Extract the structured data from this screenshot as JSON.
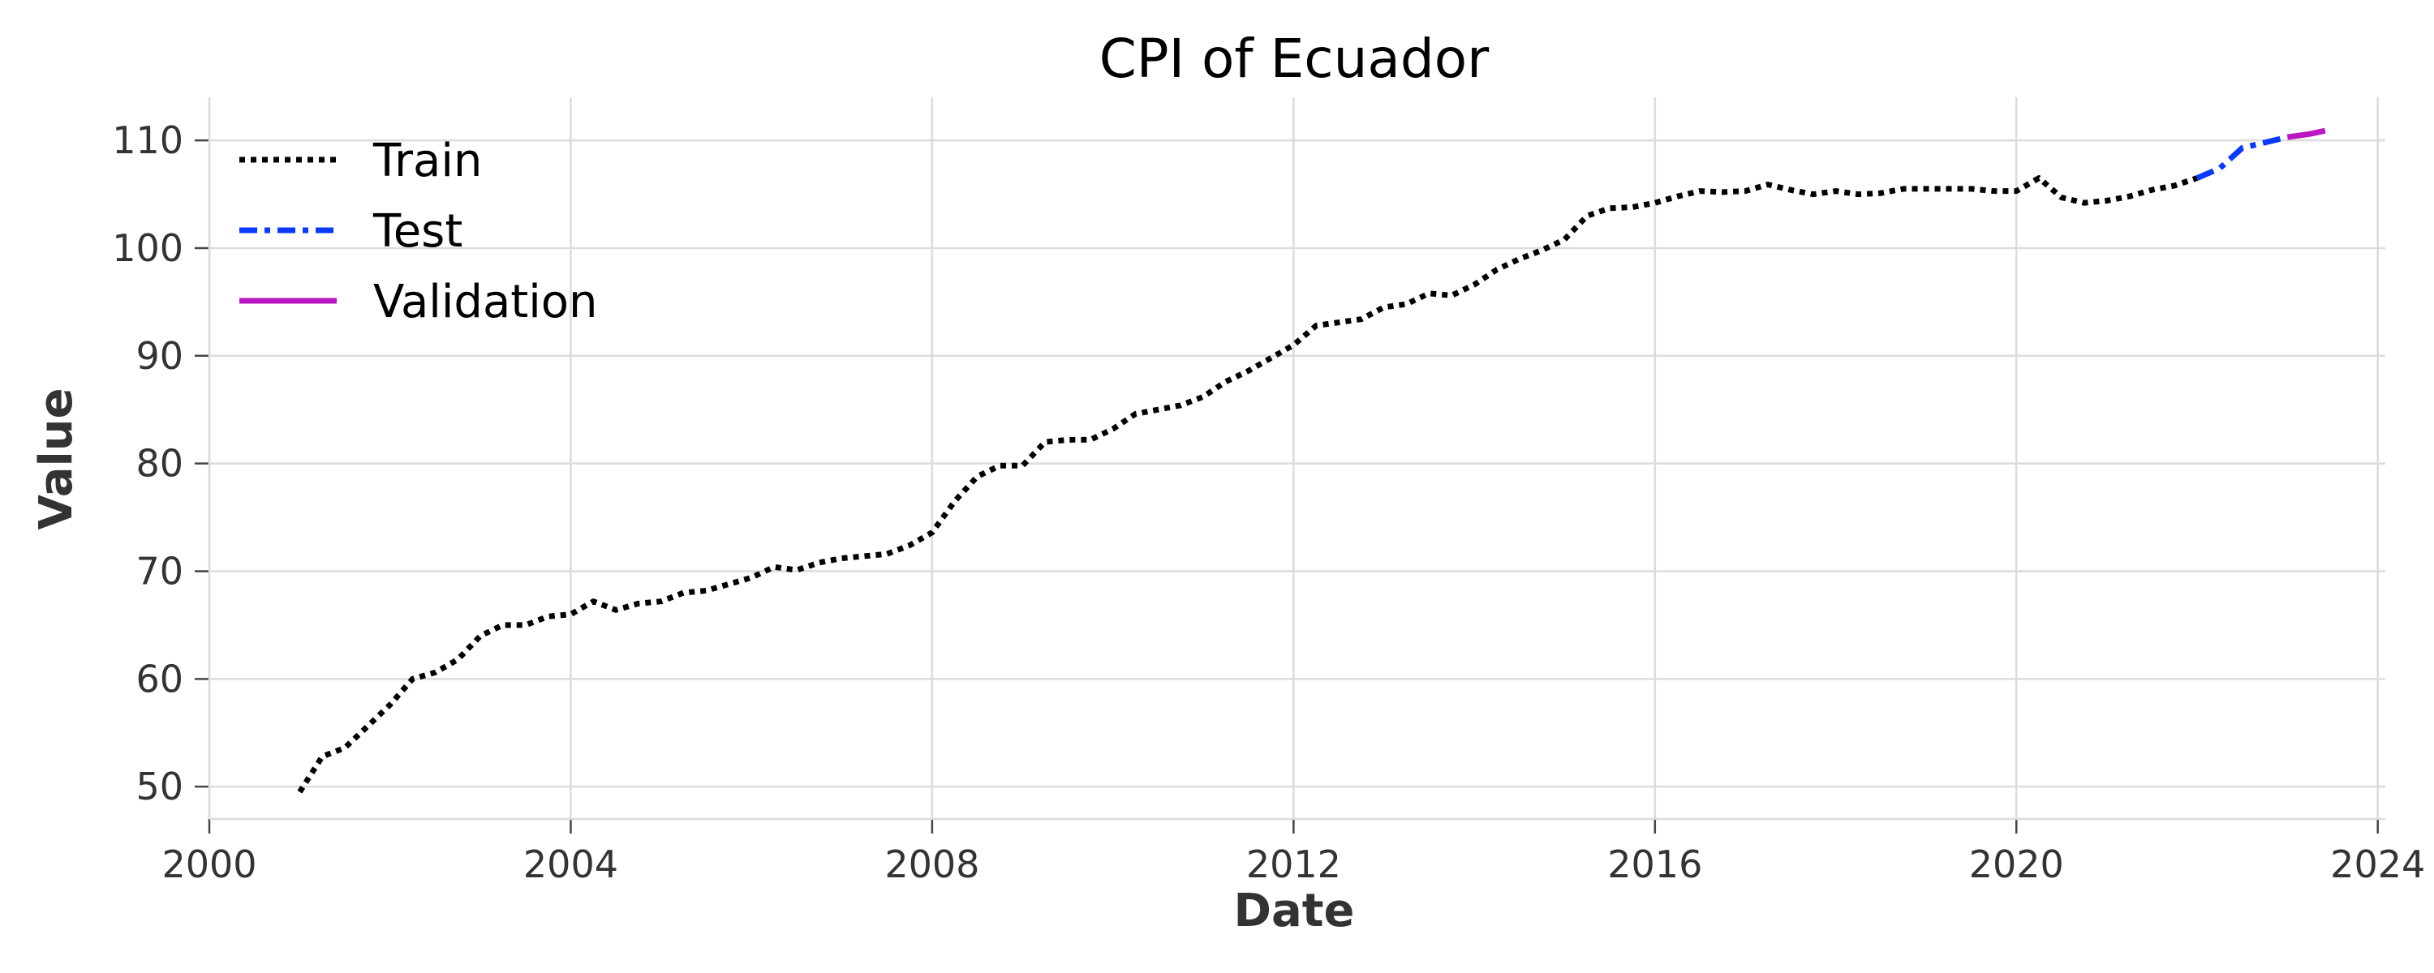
{
  "chart_data": {
    "type": "line",
    "title": "CPI of Ecuador",
    "xlabel": "Date",
    "ylabel": "Value",
    "xlim": [
      "2000-01-01",
      "2024-02-01"
    ],
    "ylim": [
      47,
      114
    ],
    "xticks": [
      "2000",
      "2004",
      "2008",
      "2012",
      "2016",
      "2020",
      "2024"
    ],
    "yticks": [
      50,
      60,
      70,
      80,
      90,
      100,
      110
    ],
    "grid": true,
    "legend_position": "top-left",
    "series": [
      {
        "name": "Train",
        "color": "#000000",
        "style": "dotted",
        "points": [
          [
            "2001-01",
            49.5
          ],
          [
            "2001-04",
            52.8
          ],
          [
            "2001-07",
            53.6
          ],
          [
            "2001-10",
            55.6
          ],
          [
            "2002-01",
            57.6
          ],
          [
            "2002-04",
            60.0
          ],
          [
            "2002-07",
            60.6
          ],
          [
            "2002-10",
            61.8
          ],
          [
            "2003-01",
            64.0
          ],
          [
            "2003-04",
            65.0
          ],
          [
            "2003-07",
            65.0
          ],
          [
            "2003-10",
            65.8
          ],
          [
            "2004-01",
            66.0
          ],
          [
            "2004-04",
            67.2
          ],
          [
            "2004-07",
            66.4
          ],
          [
            "2004-10",
            67.0
          ],
          [
            "2005-01",
            67.2
          ],
          [
            "2005-04",
            68.0
          ],
          [
            "2005-07",
            68.2
          ],
          [
            "2005-10",
            68.8
          ],
          [
            "2006-01",
            69.4
          ],
          [
            "2006-04",
            70.4
          ],
          [
            "2006-07",
            70.1
          ],
          [
            "2006-10",
            70.8
          ],
          [
            "2007-01",
            71.2
          ],
          [
            "2007-04",
            71.4
          ],
          [
            "2007-07",
            71.6
          ],
          [
            "2007-10",
            72.4
          ],
          [
            "2008-01",
            73.6
          ],
          [
            "2008-04",
            76.5
          ],
          [
            "2008-07",
            78.8
          ],
          [
            "2008-10",
            79.8
          ],
          [
            "2009-01",
            79.8
          ],
          [
            "2009-04",
            82.0
          ],
          [
            "2009-07",
            82.2
          ],
          [
            "2009-10",
            82.2
          ],
          [
            "2010-01",
            83.2
          ],
          [
            "2010-04",
            84.6
          ],
          [
            "2010-07",
            85.0
          ],
          [
            "2010-10",
            85.4
          ],
          [
            "2011-01",
            86.2
          ],
          [
            "2011-04",
            87.6
          ],
          [
            "2011-07",
            88.6
          ],
          [
            "2011-10",
            89.8
          ],
          [
            "2012-01",
            91.0
          ],
          [
            "2012-04",
            92.8
          ],
          [
            "2012-07",
            93.1
          ],
          [
            "2012-10",
            93.4
          ],
          [
            "2013-01",
            94.5
          ],
          [
            "2013-04",
            94.8
          ],
          [
            "2013-07",
            95.8
          ],
          [
            "2013-10",
            95.6
          ],
          [
            "2014-01",
            96.6
          ],
          [
            "2014-04",
            98.0
          ],
          [
            "2014-07",
            99.0
          ],
          [
            "2014-10",
            99.8
          ],
          [
            "2015-01",
            100.8
          ],
          [
            "2015-04",
            103.0
          ],
          [
            "2015-07",
            103.7
          ],
          [
            "2015-10",
            103.8
          ],
          [
            "2016-01",
            104.2
          ],
          [
            "2016-04",
            104.8
          ],
          [
            "2016-07",
            105.3
          ],
          [
            "2016-10",
            105.2
          ],
          [
            "2017-01",
            105.3
          ],
          [
            "2017-04",
            105.9
          ],
          [
            "2017-07",
            105.4
          ],
          [
            "2017-10",
            105.0
          ],
          [
            "2018-01",
            105.3
          ],
          [
            "2018-04",
            105.0
          ],
          [
            "2018-07",
            105.1
          ],
          [
            "2018-10",
            105.5
          ],
          [
            "2019-01",
            105.5
          ],
          [
            "2019-04",
            105.5
          ],
          [
            "2019-07",
            105.5
          ],
          [
            "2019-10",
            105.3
          ],
          [
            "2020-01",
            105.3
          ],
          [
            "2020-04",
            106.5
          ],
          [
            "2020-07",
            104.7
          ],
          [
            "2020-10",
            104.2
          ],
          [
            "2021-01",
            104.4
          ],
          [
            "2021-04",
            104.8
          ],
          [
            "2021-07",
            105.4
          ],
          [
            "2021-10",
            105.8
          ],
          [
            "2022-01",
            106.5
          ]
        ]
      },
      {
        "name": "Test",
        "color": "#0a3aff",
        "style": "dashdot",
        "points": [
          [
            "2022-01",
            106.5
          ],
          [
            "2022-04",
            107.4
          ],
          [
            "2022-07",
            109.3
          ],
          [
            "2022-10",
            109.8
          ],
          [
            "2023-01",
            110.3
          ]
        ]
      },
      {
        "name": "Validation",
        "color": "#bb16c4",
        "style": "solid",
        "points": [
          [
            "2023-01",
            110.3
          ],
          [
            "2023-04",
            110.6
          ],
          [
            "2023-06",
            110.9
          ]
        ]
      }
    ]
  }
}
